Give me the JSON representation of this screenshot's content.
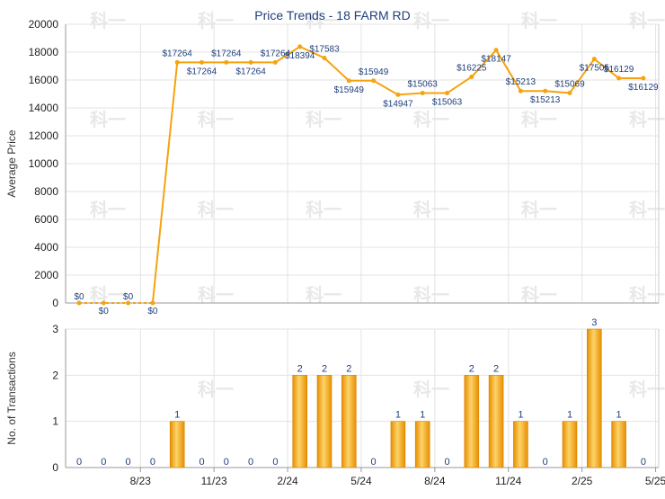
{
  "chart_data": {
    "type": "line+bar",
    "title": "Price Trends - 18 FARM RD",
    "colors": {
      "line": "#f5a30f",
      "bar": "#f5a30f",
      "title": "#1f3f7a",
      "label": "#1f3f7a",
      "grid": "#e3e3e3",
      "watermark": "#e8e8e8"
    },
    "top": {
      "ylabel": "Average Price",
      "ylim": [
        0,
        20000
      ],
      "yticks": [
        "0",
        "2000",
        "4000",
        "6000",
        "8000",
        "10000",
        "12000",
        "14000",
        "16000",
        "18000",
        "20000"
      ],
      "ytick_values": [
        0,
        2000,
        4000,
        6000,
        8000,
        10000,
        12000,
        14000,
        16000,
        18000,
        20000
      ],
      "series": [
        {
          "values": [
            0,
            0,
            0,
            0,
            17264,
            17264,
            17264,
            17264,
            17264,
            18394,
            17583,
            15949,
            15949,
            14947,
            15063,
            15063,
            16225,
            18147,
            15213,
            15213,
            15069,
            17505,
            16129,
            16129
          ]
        }
      ],
      "point_labels": [
        "$0",
        "$0",
        "$0",
        "$0",
        "$17264",
        "$17264",
        "$17264",
        "$17264",
        "$17264",
        "$18394",
        "$17583",
        "$15949",
        "$15949",
        "$14947",
        "$15063",
        "$15063",
        "$16225",
        "$18147",
        "$15213",
        "$15213",
        "$15069",
        "$17505",
        "$16129",
        "$16129"
      ]
    },
    "bottom": {
      "ylabel": "No. of Transactions",
      "ylim": [
        0,
        3
      ],
      "yticks": [
        "0",
        "1",
        "2",
        "3"
      ],
      "ytick_values": [
        0,
        1,
        2,
        3
      ],
      "values": [
        0,
        0,
        0,
        0,
        1,
        0,
        0,
        0,
        0,
        2,
        2,
        2,
        0,
        1,
        1,
        0,
        2,
        2,
        1,
        0,
        1,
        3,
        1,
        0
      ],
      "bar_labels": [
        "0",
        "0",
        "0",
        "0",
        "1",
        "0",
        "0",
        "0",
        "0",
        "2",
        "2",
        "2",
        "0",
        "1",
        "1",
        "0",
        "2",
        "2",
        "1",
        "0",
        "1",
        "3",
        "1",
        "0"
      ]
    },
    "xticks": [
      {
        "index": 2.5,
        "label": "8/23"
      },
      {
        "index": 5.5,
        "label": "11/23"
      },
      {
        "index": 8.5,
        "label": "2/24"
      },
      {
        "index": 11.5,
        "label": "5/24"
      },
      {
        "index": 14.5,
        "label": "8/24"
      },
      {
        "index": 17.5,
        "label": "11/24"
      },
      {
        "index": 20.5,
        "label": "2/25"
      },
      {
        "index": 23.5,
        "label": "5/25"
      }
    ],
    "watermark_text": "科一",
    "grid": true
  }
}
